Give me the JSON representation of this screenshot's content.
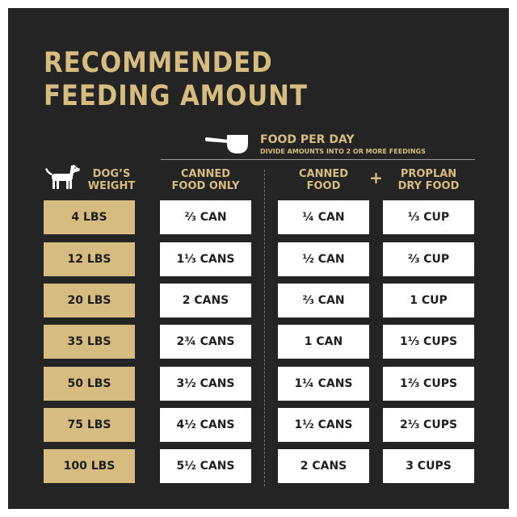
{
  "title": {
    "line1": "RECOMMENDED",
    "line2": "FEEDING AMOUNT"
  },
  "food_per_day": {
    "title": "FOOD PER DAY",
    "subtitle": "DIVIDE AMOUNTS INTO 2 OR MORE FEEDINGS",
    "icon": "measuring-scoop-icon"
  },
  "headers": {
    "weight": "DOG’S\nWEIGHT",
    "canned_only": "CANNED\nFOOD ONLY",
    "canned": "CANNED\nFOOD",
    "plus": "+",
    "dry": "PROPLAN\nDRY FOOD",
    "weight_icon": "dog-icon"
  },
  "rows": [
    {
      "weight": "4 LBS",
      "canned_only": "⅔ CAN",
      "canned": "¼ CAN",
      "dry": "⅓ CUP"
    },
    {
      "weight": "12 LBS",
      "canned_only": "1⅓ CANS",
      "canned": "½ CAN",
      "dry": "⅔ CUP"
    },
    {
      "weight": "20 LBS",
      "canned_only": "2 CANS",
      "canned": "⅔ CAN",
      "dry": "1 CUP"
    },
    {
      "weight": "35 LBS",
      "canned_only": "2¾ CANS",
      "canned": "1 CAN",
      "dry": "1⅓ CUPS"
    },
    {
      "weight": "50 LBS",
      "canned_only": "3½ CANS",
      "canned": "1¼ CANS",
      "dry": "1⅔ CUPS"
    },
    {
      "weight": "75 LBS",
      "canned_only": "4½ CANS",
      "canned": "1½ CANS",
      "dry": "2⅓ CUPS"
    },
    {
      "weight": "100 LBS",
      "canned_only": "5½ CANS",
      "canned": "2 CANS",
      "dry": "3 CUPS"
    }
  ],
  "colors": {
    "background": "#242424",
    "accent": "#d6bc80",
    "cell": "#ffffff",
    "cell_text": "#1f1f1f"
  }
}
